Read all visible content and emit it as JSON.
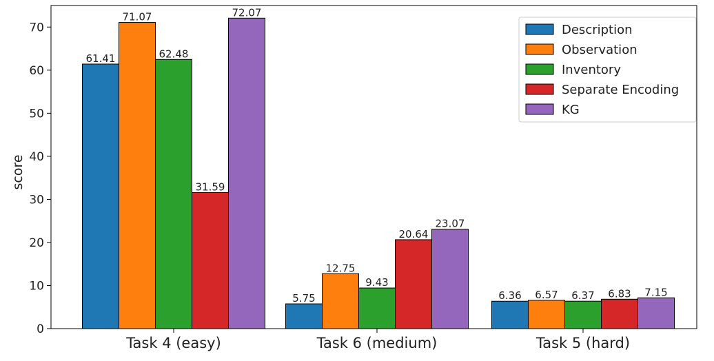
{
  "chart_data": {
    "type": "bar",
    "categories": [
      "Task 4 (easy)",
      "Task 6 (medium)",
      "Task 5 (hard)"
    ],
    "series": [
      {
        "name": "Description",
        "color": "#1f77b4",
        "values": [
          61.41,
          5.75,
          6.36
        ],
        "labels": [
          "61.41",
          "5.75",
          "6.36"
        ]
      },
      {
        "name": "Observation",
        "color": "#ff7f0e",
        "values": [
          71.07,
          12.75,
          6.57
        ],
        "labels": [
          "71.07",
          "12.75",
          "6.57"
        ]
      },
      {
        "name": "Inventory",
        "color": "#2ca02c",
        "values": [
          62.48,
          9.43,
          6.37
        ],
        "labels": [
          "62.48",
          "9.43",
          "6.37"
        ]
      },
      {
        "name": "Separate Encoding",
        "color": "#d62728",
        "values": [
          31.59,
          20.64,
          6.83
        ],
        "labels": [
          "31.59",
          "20.64",
          "6.83"
        ]
      },
      {
        "name": "KG",
        "color": "#9467bd",
        "values": [
          72.07,
          23.07,
          7.15
        ],
        "labels": [
          "72.07",
          "23.07",
          "7.15"
        ]
      }
    ],
    "ylabel": "score",
    "xlabel": "",
    "ylim": [
      0,
      75
    ],
    "yticks": [
      0,
      10,
      20,
      30,
      40,
      50,
      60,
      70
    ],
    "grid": false,
    "legend_position": "top-right"
  }
}
